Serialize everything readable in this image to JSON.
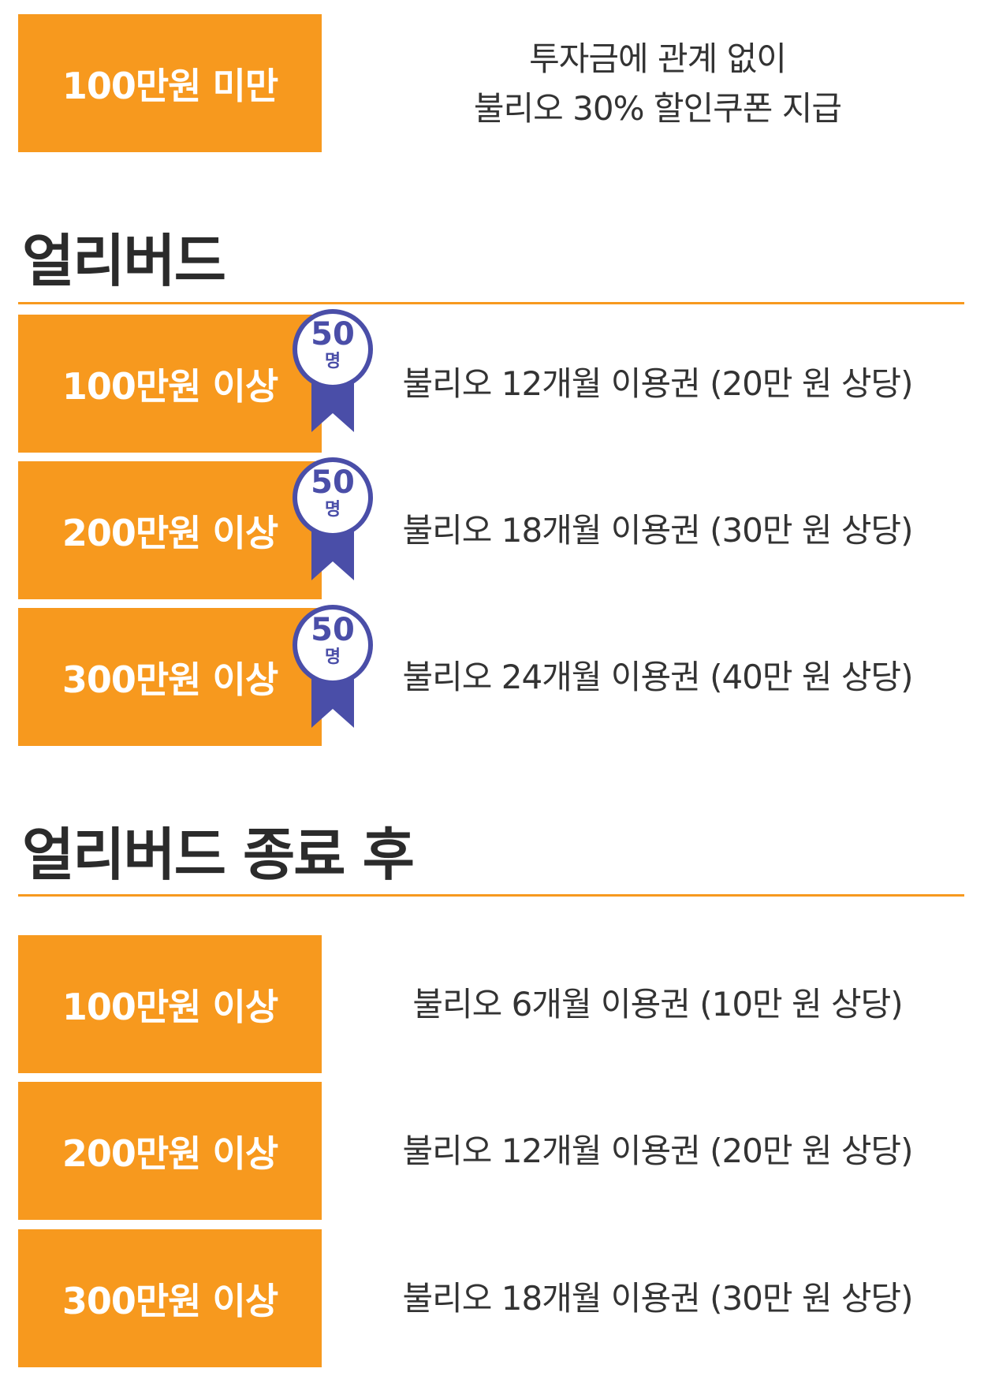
{
  "intro": {
    "tier_label": "100만원 미만",
    "desc_line1": "투자금에 관계 없이",
    "desc_line2": "불리오 30% 할인쿠폰 지급"
  },
  "early_bird": {
    "title": "얼리버드",
    "badge_number": "50",
    "badge_unit": "명",
    "rows": [
      {
        "tier": "100만원 이상",
        "reward": "불리오 12개월 이용권 (20만 원 상당)"
      },
      {
        "tier": "200만원 이상",
        "reward": "불리오 18개월 이용권 (30만 원 상당)"
      },
      {
        "tier": "300만원 이상",
        "reward": "불리오 24개월 이용권 (40만 원 상당)"
      }
    ]
  },
  "after_early_bird": {
    "title": "얼리버드 종료 후",
    "rows": [
      {
        "tier": "100만원 이상",
        "reward": "불리오 6개월 이용권 (10만 원 상당)"
      },
      {
        "tier": "200만원 이상",
        "reward": "불리오 12개월 이용권 (20만 원 상당)"
      },
      {
        "tier": "300만원 이상",
        "reward": "불리오 18개월 이용권 (30만 원 상당)"
      }
    ]
  },
  "colors": {
    "accent_orange": "#f7991e",
    "badge_purple": "#4a4ea8",
    "text_dark": "#333333"
  }
}
